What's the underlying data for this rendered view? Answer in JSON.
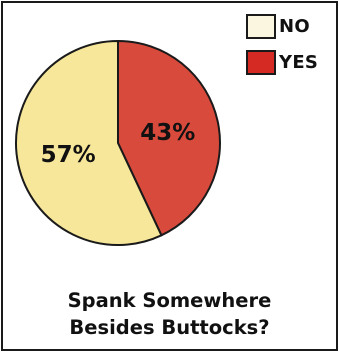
{
  "chart_data": {
    "type": "pie",
    "title_lines": [
      "Spank Somewhere",
      "Besides Buttocks?"
    ],
    "slices": [
      {
        "label": "YES",
        "value": 43,
        "display": "43%",
        "color": "#d84a3c"
      },
      {
        "label": "NO",
        "value": 57,
        "display": "57%",
        "color": "#f7e79a"
      }
    ],
    "legend": {
      "placement": "top-right",
      "items": [
        {
          "label": "NO",
          "color": "#fbf6e0"
        },
        {
          "label": "YES",
          "color": "#d42a23"
        }
      ]
    },
    "start_direction": "12 o'clock, clockwise",
    "outline_color": "#1a1a1a"
  }
}
